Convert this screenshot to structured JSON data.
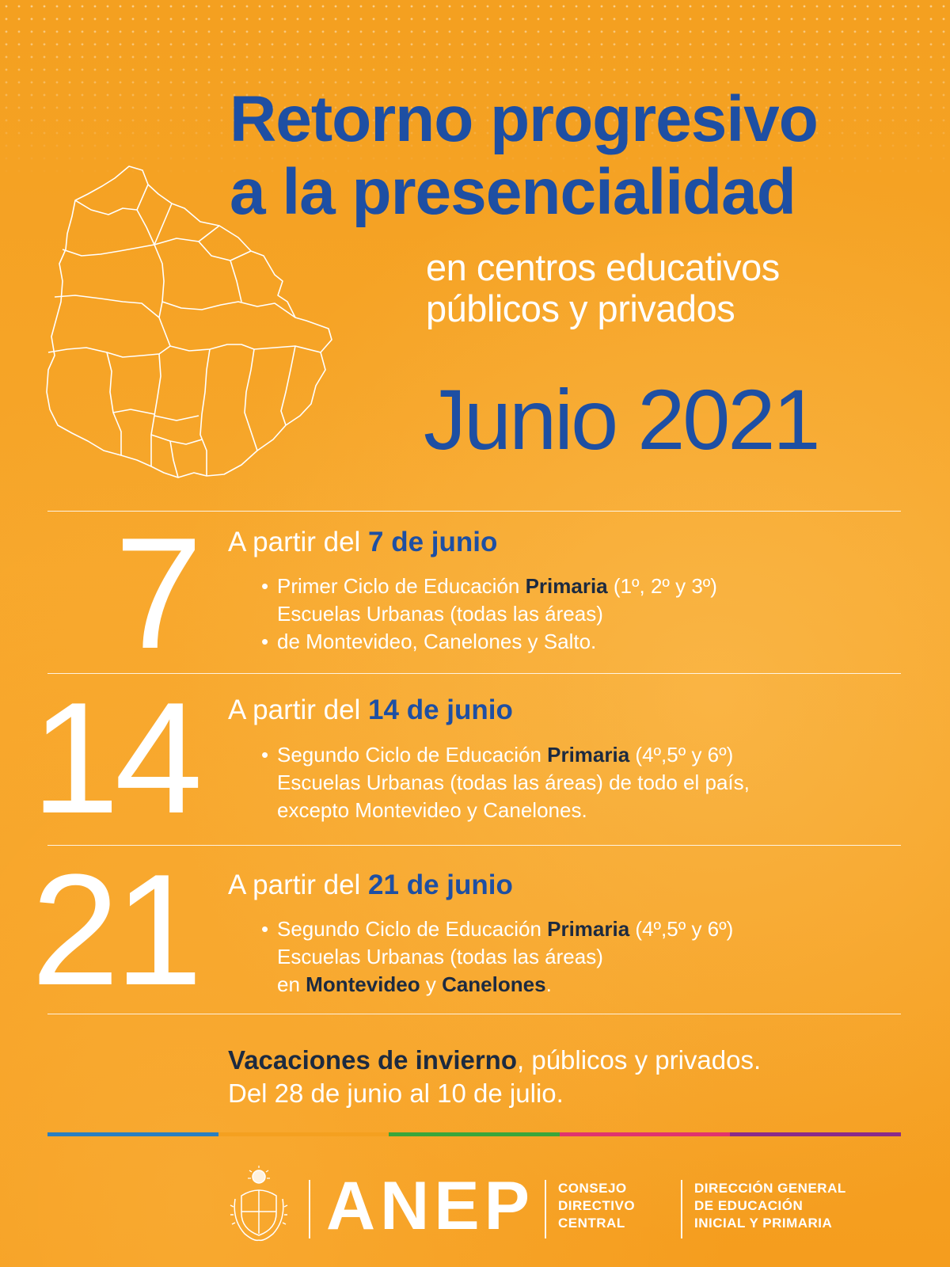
{
  "header": {
    "title_line1": "Retorno progresivo",
    "title_line2": "a la presencialidad",
    "subtitle_line1": "en centros educativos",
    "subtitle_line2": "públicos y privados",
    "month": "Junio 2021"
  },
  "schedule": [
    {
      "number": "7",
      "head_prefix": "A partir del ",
      "head_date": "7 de junio",
      "lines": {
        "l1_pre": "Primer Ciclo de Educación ",
        "l1_bold": "Primaria",
        "l1_post": " (1º, 2º y 3º)",
        "l2": "Escuelas Urbanas (todas las áreas)",
        "l3": "de Montevideo, Canelones y Salto."
      }
    },
    {
      "number": "14",
      "head_prefix": "A partir del ",
      "head_date": "14 de junio",
      "lines": {
        "l1_pre": "Segundo Ciclo de Educación ",
        "l1_bold": "Primaria",
        "l1_post": " (4º,5º y 6º)",
        "l2": "Escuelas Urbanas (todas las áreas) de todo el país,",
        "l3": "excepto Montevideo y Canelones."
      }
    },
    {
      "number": "21",
      "head_prefix": "A partir del ",
      "head_date": "21 de junio",
      "lines": {
        "l1_pre": "Segundo Ciclo de Educación ",
        "l1_bold": "Primaria",
        "l1_post": " (4º,5º y 6º)",
        "l2": "Escuelas Urbanas (todas las áreas)",
        "l3_pre": "en ",
        "l3_bold1": "Montevideo",
        "l3_mid": " y ",
        "l3_bold2": "Canelones",
        "l3_post": "."
      }
    }
  ],
  "bullet": "•",
  "vacation": {
    "bold": "Vacaciones de invierno",
    "rest": ", públicos y privados.",
    "line2": "Del 28 de junio al 10 de julio."
  },
  "colors": {
    "bar": [
      "#2a7fc1",
      "#f4a020",
      "#3aa63a",
      "#e0336e",
      "#8a2a8a"
    ],
    "title_blue": "#1e4fa3",
    "background": "#f4a020"
  },
  "footer": {
    "logo_text": "ANEP",
    "org1": [
      "CONSEJO",
      "DIRECTIVO",
      "CENTRAL"
    ],
    "org2": [
      "DIRECCIÓN GENERAL",
      "DE EDUCACIÓN",
      "INICIAL Y PRIMARIA"
    ],
    "seal_icon": "coat-of-arms-icon"
  }
}
